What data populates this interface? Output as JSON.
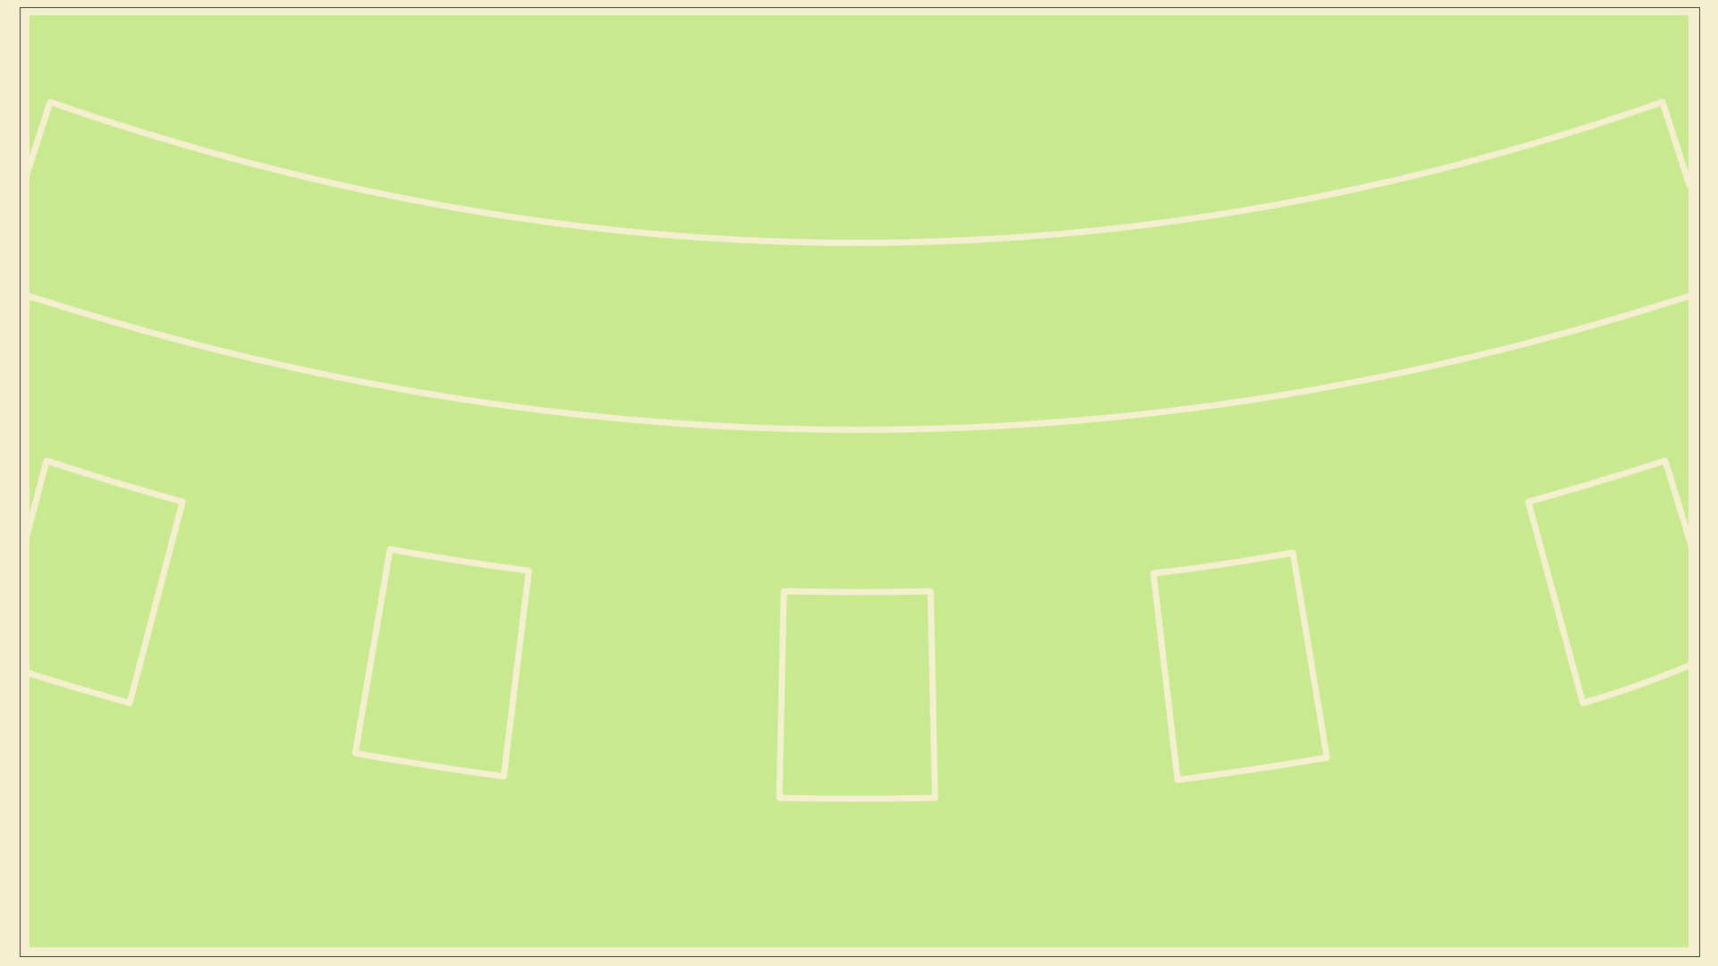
{
  "table": {
    "felt_color": "#c8e98f",
    "line_color": "#f3efcf",
    "background_color": "#f3efcf",
    "player_spots": 5
  }
}
